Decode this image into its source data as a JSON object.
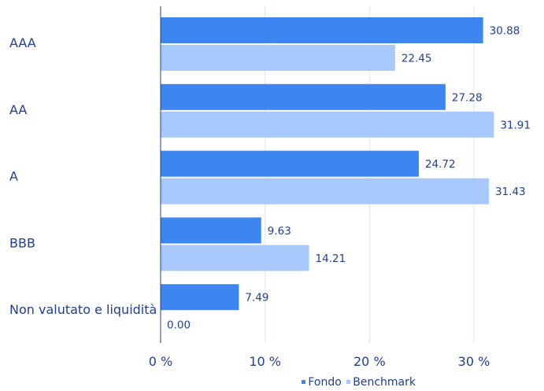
{
  "chart_data": {
    "type": "bar",
    "orientation": "horizontal",
    "categories": [
      "AAA",
      "AA",
      "A",
      "BBB",
      "Non valutato e liquidità"
    ],
    "series": [
      {
        "name": "Fondo",
        "values": [
          30.88,
          27.28,
          24.72,
          9.63,
          7.49
        ],
        "value_labels": [
          "30.88",
          "27.28",
          "24.72",
          "9.63",
          "7.49"
        ],
        "color": "#3d86f2"
      },
      {
        "name": "Benchmark",
        "values": [
          22.45,
          31.91,
          31.43,
          14.21,
          0.0
        ],
        "value_labels": [
          "22.45",
          "31.91",
          "31.43",
          "14.21",
          "0.00"
        ],
        "color": "#a8c8fb"
      }
    ],
    "xlim": [
      0,
      35
    ],
    "xticks": [
      0,
      10,
      20,
      30
    ],
    "xtick_labels": [
      "0 %",
      "10 %",
      "20 %",
      "30 %"
    ],
    "grid": true,
    "legend_position": "bottom-right",
    "colors": {
      "text": "#1f3f8f",
      "grid": "#dbe7f7",
      "axis": "#1f3f8f"
    }
  }
}
